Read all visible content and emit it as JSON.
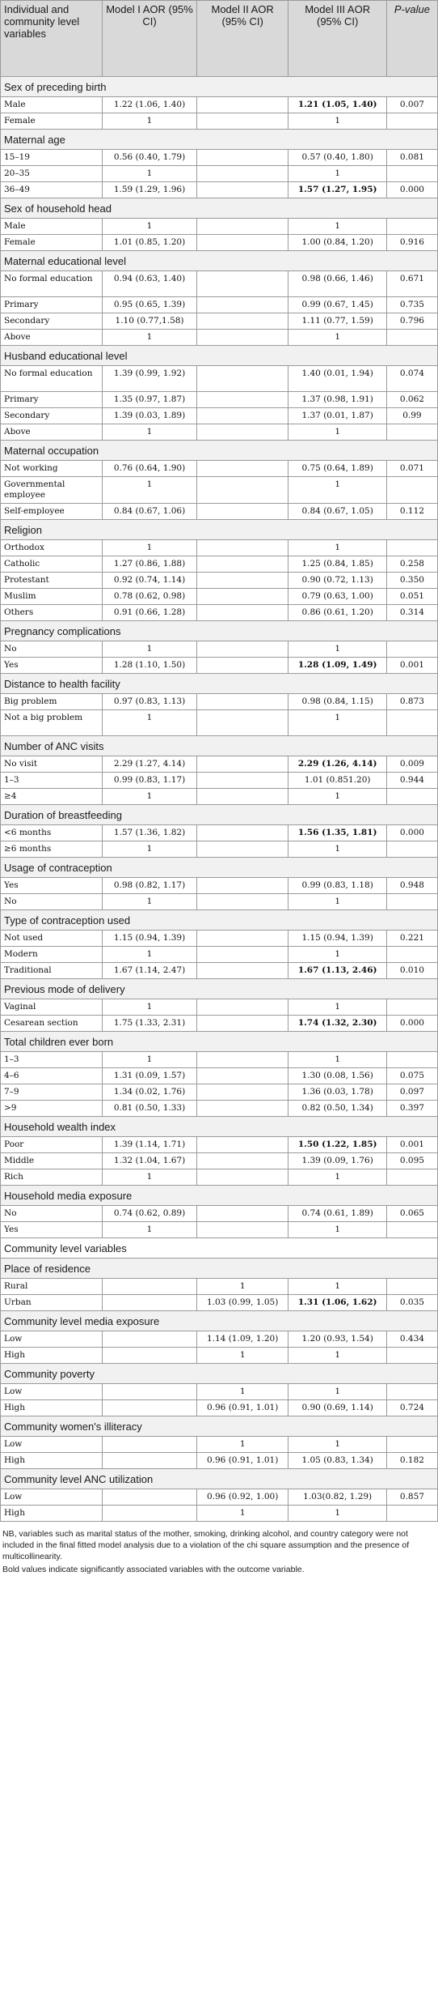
{
  "header": {
    "col0": "Individual and community level variables",
    "col1": "Model I AOR (95% CI)",
    "col2": "Model II AOR (95% CI)",
    "col3": "Model III AOR (95% CI)",
    "col4": "P-value"
  },
  "sections": [
    {
      "title": "Sex of preceding birth",
      "rows": [
        {
          "label": "Male",
          "m1": "1.22 (1.06, 1.40)",
          "m2": "",
          "m3": "1.21 (1.05, 1.40)",
          "m3_bold": true,
          "p": "0.007"
        },
        {
          "label": "Female",
          "m1": "1",
          "m2": "",
          "m3": "1",
          "p": ""
        }
      ]
    },
    {
      "title": "Maternal age",
      "rows": [
        {
          "label": "15–19",
          "m1": "0.56 (0.40, 1.79)",
          "m2": "",
          "m3": "0.57 (0.40, 1.80)",
          "p": "0.081"
        },
        {
          "label": "20–35",
          "m1": "1",
          "m2": "",
          "m3": "1",
          "p": ""
        },
        {
          "label": "36–49",
          "m1": "1.59 (1.29, 1.96)",
          "m2": "",
          "m3": "1.57 (1.27, 1.95)",
          "m3_bold": true,
          "p": "0.000"
        }
      ]
    },
    {
      "title": "Sex of household head",
      "rows": [
        {
          "label": "Male",
          "m1": "1",
          "m2": "",
          "m3": "1",
          "p": ""
        },
        {
          "label": "Female",
          "m1": "1.01 (0.85, 1.20)",
          "m2": "",
          "m3": "1.00 (0.84, 1.20)",
          "p": "0.916"
        }
      ]
    },
    {
      "title": "Maternal educational level",
      "rows": [
        {
          "label": "No formal education",
          "tall": true,
          "m1": "0.94 (0.63, 1.40)",
          "m2": "",
          "m3": "0.98 (0.66, 1.46)",
          "p": "0.671"
        },
        {
          "label": "Primary",
          "m1": "0.95 (0.65, 1.39)",
          "m2": "",
          "m3": "0.99 (0.67, 1.45)",
          "p": "0.735"
        },
        {
          "label": "Secondary",
          "m1": "1.10 (0.77,1.58)",
          "m2": "",
          "m3": "1.11 (0.77, 1.59)",
          "p": "0.796"
        },
        {
          "label": "Above",
          "m1": "1",
          "m2": "",
          "m3": "1",
          "p": ""
        }
      ]
    },
    {
      "title": "Husband educational level",
      "rows": [
        {
          "label": "No formal education",
          "tall": true,
          "m1": "1.39 (0.99, 1.92)",
          "m2": "",
          "m3": "1.40 (0.01, 1.94)",
          "p": "0.074"
        },
        {
          "label": "Primary",
          "m1": "1.35 (0.97, 1.87)",
          "m2": "",
          "m3": "1.37 (0.98, 1.91)",
          "p": "0.062"
        },
        {
          "label": "Secondary",
          "m1": "1.39 (0.03, 1.89)",
          "m2": "",
          "m3": "1.37 (0.01, 1.87)",
          "p": "0.99"
        },
        {
          "label": "Above",
          "m1": "1",
          "m2": "",
          "m3": "1",
          "p": ""
        }
      ]
    },
    {
      "title": "Maternal occupation",
      "rows": [
        {
          "label": "Not working",
          "m1": "0.76 (0.64, 1.90)",
          "m2": "",
          "m3": "0.75 (0.64, 1.89)",
          "p": "0.071"
        },
        {
          "label": "Governmental employee",
          "tall": true,
          "m1": "1",
          "m2": "",
          "m3": "1",
          "p": ""
        },
        {
          "label": "Self-employee",
          "m1": "0.84 (0.67, 1.06)",
          "m2": "",
          "m3": "0.84 (0.67, 1.05)",
          "p": "0.112"
        }
      ]
    },
    {
      "title": "Religion",
      "rows": [
        {
          "label": "Orthodox",
          "m1": "1",
          "m2": "",
          "m3": "1",
          "p": ""
        },
        {
          "label": "Catholic",
          "m1": "1.27 (0.86, 1.88)",
          "m2": "",
          "m3": "1.25 (0.84, 1.85)",
          "p": "0.258"
        },
        {
          "label": "Protestant",
          "m1": "0.92 (0.74, 1.14)",
          "m2": "",
          "m3": "0.90 (0.72, 1.13)",
          "p": "0.350"
        },
        {
          "label": "Muslim",
          "m1": "0.78 (0.62, 0.98)",
          "m2": "",
          "m3": "0.79 (0.63, 1.00)",
          "p": "0.051"
        },
        {
          "label": "Others",
          "m1": "0.91 (0.66, 1.28)",
          "m2": "",
          "m3": "0.86 (0.61, 1.20)",
          "p": "0.314"
        }
      ]
    },
    {
      "title": "Pregnancy complications",
      "rows": [
        {
          "label": "No",
          "m1": "1",
          "m2": "",
          "m3": "1",
          "p": ""
        },
        {
          "label": "Yes",
          "m1": "1.28 (1.10, 1.50)",
          "m2": "",
          "m3": "1.28 (1.09, 1.49)",
          "m3_bold": true,
          "p": "0.001"
        }
      ]
    },
    {
      "title": "Distance to health facility",
      "rows": [
        {
          "label": "Big problem",
          "m1": "0.97 (0.83, 1.13)",
          "m2": "",
          "m3": "0.98 (0.84, 1.15)",
          "p": "0.873"
        },
        {
          "label": "Not a big problem",
          "tall": true,
          "m1": "1",
          "m2": "",
          "m3": "1",
          "p": ""
        }
      ]
    },
    {
      "title": "Number of ANC visits",
      "rows": [
        {
          "label": "No visit",
          "m1": "2.29 (1.27, 4.14)",
          "m2": "",
          "m3": "2.29 (1.26, 4.14)",
          "m3_bold": true,
          "p": "0.009"
        },
        {
          "label": "1–3",
          "m1": "0.99 (0.83, 1.17)",
          "m2": "",
          "m3": "1.01 (0.851.20)",
          "p": "0.944"
        },
        {
          "label": "≥4",
          "m1": "1",
          "m2": "",
          "m3": "1",
          "p": ""
        }
      ]
    },
    {
      "title": "Duration of breastfeeding",
      "rows": [
        {
          "label": "<6 months",
          "m1": "1.57 (1.36, 1.82)",
          "m2": "",
          "m3": "1.56 (1.35, 1.81)",
          "m3_bold": true,
          "p": "0.000"
        },
        {
          "label": "≥6 months",
          "m1": "1",
          "m2": "",
          "m3": "1",
          "p": ""
        }
      ]
    },
    {
      "title": "Usage of contraception",
      "rows": [
        {
          "label": "Yes",
          "m1": "0.98 (0.82, 1.17)",
          "m2": "",
          "m3": "0.99 (0.83, 1.18)",
          "p": "0.948"
        },
        {
          "label": "No",
          "m1": "1",
          "m2": "",
          "m3": "1",
          "p": ""
        }
      ]
    },
    {
      "title": "Type of contraception used",
      "rows": [
        {
          "label": "Not used",
          "m1": "1.15 (0.94, 1.39)",
          "m2": "",
          "m3": "1.15 (0.94, 1.39)",
          "p": "0.221"
        },
        {
          "label": "Modern",
          "m1": "1",
          "m2": "",
          "m3": "1",
          "p": ""
        },
        {
          "label": "Traditional",
          "m1": "1.67 (1.14, 2.47)",
          "m2": "",
          "m3": "1.67 (1.13, 2.46)",
          "m3_bold": true,
          "p": "0.010"
        }
      ]
    },
    {
      "title": "Previous mode of delivery",
      "rows": [
        {
          "label": "Vaginal",
          "m1": "1",
          "m2": "",
          "m3": "1",
          "p": ""
        },
        {
          "label": "Cesarean section",
          "m1": "1.75 (1.33, 2.31)",
          "m2": "",
          "m3": "1.74 (1.32, 2.30)",
          "m3_bold": true,
          "p": "0.000"
        }
      ]
    },
    {
      "title": "Total children ever born",
      "rows": [
        {
          "label": "1–3",
          "m1": "1",
          "m2": "",
          "m3": "1",
          "p": ""
        },
        {
          "label": "4–6",
          "m1": "1.31 (0.09, 1.57)",
          "m2": "",
          "m3": "1.30 (0.08, 1.56)",
          "p": "0.075"
        },
        {
          "label": "7–9",
          "m1": "1.34 (0.02, 1.76)",
          "m2": "",
          "m3": "1.36 (0.03, 1.78)",
          "p": "0.097"
        },
        {
          "label": ">9",
          "m1": "0.81 (0.50, 1.33)",
          "m2": "",
          "m3": "0.82 (0.50, 1.34)",
          "p": "0.397"
        }
      ]
    },
    {
      "title": "Household wealth index",
      "rows": [
        {
          "label": "Poor",
          "m1": "1.39 (1.14, 1.71)",
          "m2": "",
          "m3": "1.50 (1.22, 1.85)",
          "m3_bold": true,
          "p": "0.001"
        },
        {
          "label": "Middle",
          "m1": "1.32 (1.04, 1.67)",
          "m2": "",
          "m3": "1.39 (0.09, 1.76)",
          "p": "0.095"
        },
        {
          "label": "Rich",
          "m1": "1",
          "m2": "",
          "m3": "1",
          "p": ""
        }
      ]
    },
    {
      "title": "Household media exposure",
      "rows": [
        {
          "label": "No",
          "m1": "0.74 (0.62, 0.89)",
          "m2": "",
          "m3": "0.74 (0.61, 1.89)",
          "p": "0.065"
        },
        {
          "label": "Yes",
          "m1": "1",
          "m2": "",
          "m3": "1",
          "p": ""
        }
      ]
    },
    {
      "title": "Community level variables",
      "white": true,
      "rows": []
    },
    {
      "title": "Place of residence",
      "rows": [
        {
          "label": "Rural",
          "m1": "",
          "m2": "1",
          "m3": "1",
          "p": ""
        },
        {
          "label": "Urban",
          "m1": "",
          "m2": "1.03 (0.99, 1.05)",
          "m3": "1.31 (1.06, 1.62)",
          "m3_bold": true,
          "p": "0.035"
        }
      ]
    },
    {
      "title": "Community level media exposure",
      "rows": [
        {
          "label": "Low",
          "m1": "",
          "m2": "1.14 (1.09, 1.20)",
          "m3": "1.20 (0.93, 1.54)",
          "p": "0.434"
        },
        {
          "label": "High",
          "m1": "",
          "m2": "1",
          "m3": "1",
          "p": ""
        }
      ]
    },
    {
      "title": "Community poverty",
      "rows": [
        {
          "label": "Low",
          "m1": "",
          "m2": "1",
          "m3": "1",
          "p": ""
        },
        {
          "label": "High",
          "m1": "",
          "m2": "0.96 (0.91, 1.01)",
          "m3": "0.90 (0.69, 1.14)",
          "p": "0.724"
        }
      ]
    },
    {
      "title": "Community women's illiteracy",
      "rows": [
        {
          "label": "Low",
          "m1": "",
          "m2": "1",
          "m3": "1",
          "p": ""
        },
        {
          "label": "High",
          "m1": "",
          "m2": "0.96 (0.91, 1.01)",
          "m3": "1.05 (0.83, 1.34)",
          "p": "0.182"
        }
      ]
    },
    {
      "title": "Community level ANC utilization",
      "rows": [
        {
          "label": "Low",
          "m1": "",
          "m2": "0.96 (0.92, 1.00)",
          "m3": "1.03(0.82, 1.29)",
          "p": "0.857"
        },
        {
          "label": "High",
          "m1": "",
          "m2": "1",
          "m3": "1",
          "p": ""
        }
      ]
    }
  ],
  "notes": {
    "nb": "NB, variables such as marital status of the mother, smoking, drinking alcohol, and country category were not included in the final fitted model analysis due to a violation of the chi square assumption and the presence of multicollinearity.",
    "bold": "Bold values indicate significantly associated variables with the outcome variable."
  }
}
